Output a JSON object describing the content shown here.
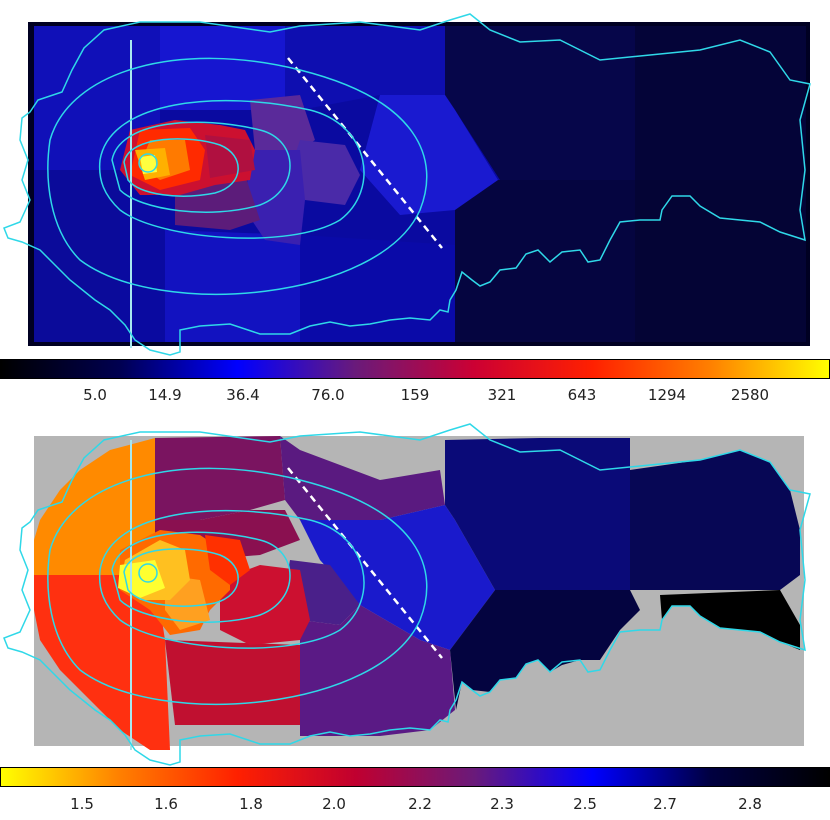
{
  "panels": [
    {
      "name": "intensity-map",
      "colorbar_gradient": [
        "#000000",
        "#000050",
        "#0000ff",
        "#6a1a7a",
        "#cc0033",
        "#ff2000",
        "#ff8000",
        "#ffff00"
      ],
      "ticks": [
        "5.0",
        "14.9",
        "36.4",
        "76.0",
        "159",
        "321",
        "643",
        "1294",
        "2580"
      ]
    },
    {
      "name": "ratio-map",
      "colorbar_gradient": [
        "#ffff00",
        "#ff8000",
        "#ff2000",
        "#c00030",
        "#6a1a7a",
        "#0000ff",
        "#000040",
        "#000000"
      ],
      "ticks": [
        "1.5",
        "1.6",
        "1.8",
        "2.0",
        "2.2",
        "2.3",
        "2.5",
        "2.7",
        "2.8"
      ]
    }
  ],
  "colors": {
    "contour": "#2fd8e8",
    "background_grey": "#b5b5b5",
    "dashed_line": "#ffffff"
  }
}
